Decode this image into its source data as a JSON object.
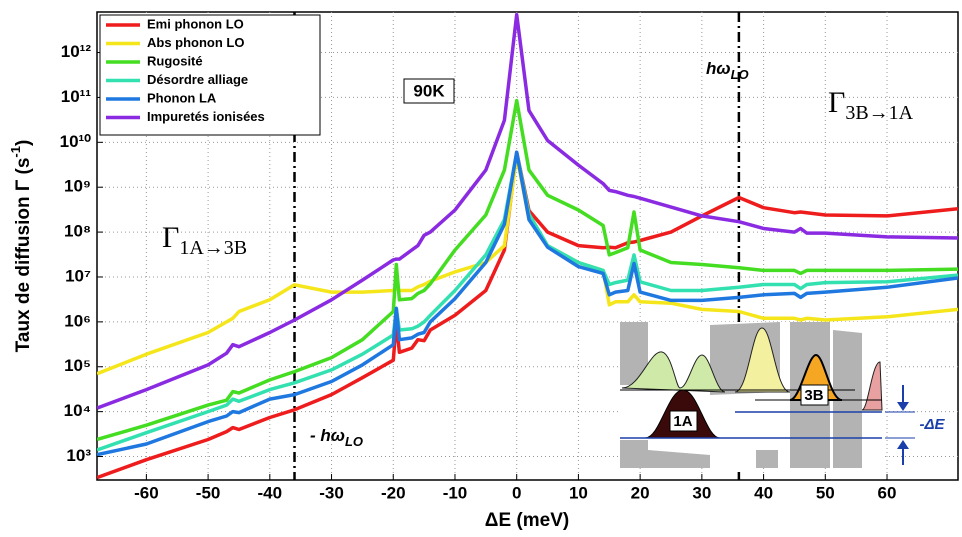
{
  "chart_data": {
    "type": "line",
    "x_label": "ΔE (meV)",
    "y_label": {
      "main": "Taux de diffusion  Γ (s",
      "sup": "-1",
      "end": ")"
    },
    "log_y": true,
    "grid": true,
    "legend": "upper left",
    "xlim": [
      -68,
      71.5
    ],
    "ylim": [
      300,
      8000000000000
    ],
    "xticks": [
      -60,
      -50,
      -40,
      -30,
      -20,
      -10,
      0,
      10,
      20,
      30,
      40,
      50,
      60
    ],
    "yticks": [
      {
        "value": 1000,
        "label": "10³"
      },
      {
        "value": 10000,
        "label": "10⁴"
      },
      {
        "value": 100000,
        "label": "10⁵"
      },
      {
        "value": 1000000,
        "label": "10⁶"
      },
      {
        "value": 10000000,
        "label": "10⁷"
      },
      {
        "value": 100000000,
        "label": "10⁸"
      },
      {
        "value": 1000000000,
        "label": "10⁹"
      },
      {
        "value": 10000000000,
        "label": "10¹⁰"
      },
      {
        "value": 100000000000,
        "label": "10¹¹"
      },
      {
        "value": 1000000000000,
        "label": "10¹²"
      }
    ],
    "x": [
      -68,
      -60,
      -50,
      -47,
      -46,
      -45,
      -40,
      -36,
      -30,
      -25,
      -20,
      -19.5,
      -19,
      -17,
      -16,
      -15,
      -14,
      -10,
      -5,
      -2,
      0,
      2,
      5,
      10,
      14,
      15,
      16,
      18,
      19,
      20,
      25,
      30,
      36,
      40,
      45,
      46,
      47,
      50,
      60,
      71.5
    ],
    "series": [
      {
        "name": "Emi phonon LO",
        "color": "#ee1c1c",
        "values": [
          340,
          850,
          2400,
          3600,
          4400,
          4000,
          7400,
          11000,
          24000,
          57000,
          140000,
          1000000,
          210000,
          260000,
          400000,
          380000,
          660000,
          1400000,
          5000000,
          40000000,
          6000000000,
          300000000,
          100000000,
          50000000,
          45000000,
          46000000,
          45000000,
          58000000,
          60000000,
          65000000,
          100000000,
          230000000,
          590000000,
          350000000,
          270000000,
          280000000,
          270000000,
          240000000,
          230000000,
          330000000
        ]
      },
      {
        "name": "Abs phonon LO",
        "color": "#f5e61c",
        "values": [
          70000,
          190000,
          580000,
          1000000,
          1200000,
          1700000,
          3100000,
          6700000,
          4600000,
          4600000,
          5000000,
          5500000,
          5000000,
          5000000,
          6000000,
          6800000,
          8000000,
          13000000,
          21000000,
          50000000,
          5000000000,
          190000000,
          50000000,
          21000000,
          14000000,
          2400000,
          2800000,
          2800000,
          4000000,
          2800000,
          2600000,
          1900000,
          1700000,
          1200000,
          1200000,
          1100000,
          1200000,
          1100000,
          1300000,
          1900000
        ]
      },
      {
        "name": "Rugosité",
        "color": "#44dd22",
        "values": [
          2400,
          5000,
          14000,
          18000,
          28000,
          26000,
          51000,
          78000,
          160000,
          400000,
          1700000,
          19000000,
          3100000,
          3300000,
          4300000,
          5000000,
          7000000,
          40000000,
          240000000,
          2400000000,
          85000000000,
          2400000000,
          660000000,
          310000000,
          140000000,
          31000000,
          35000000,
          45000000,
          280000000,
          40000000,
          21000000,
          19000000,
          16000000,
          14000000,
          14000000,
          12000000,
          14000000,
          14000000,
          14000000,
          15000000
        ]
      },
      {
        "name": "Désordre alliage",
        "color": "#33e0b0",
        "values": [
          1400,
          3400,
          10000,
          14000,
          19000,
          17000,
          31000,
          44000,
          85000,
          190000,
          510000,
          2000000,
          660000,
          700000,
          800000,
          1000000,
          1400000,
          5000000,
          31000000,
          190000000,
          6000000000,
          250000000,
          50000000,
          21000000,
          14000000,
          6800000,
          7500000,
          8500000,
          31000000,
          7800000,
          5000000,
          5000000,
          5900000,
          6800000,
          6800000,
          5500000,
          6800000,
          7500000,
          7800000,
          11000000
        ]
      },
      {
        "name": "Phonon LA",
        "color": "#1f78e0",
        "values": [
          1100,
          1900,
          6000,
          8000,
          10000,
          9500,
          19000,
          24000,
          47000,
          110000,
          310000,
          2000000,
          400000,
          440000,
          530000,
          580000,
          1000000,
          3300000,
          21000000,
          150000000,
          6000000000,
          190000000,
          46000000,
          17000000,
          12000000,
          4000000,
          4600000,
          5000000,
          20000000,
          4600000,
          3000000,
          3000000,
          3500000,
          4000000,
          4300000,
          3500000,
          4300000,
          4600000,
          5900000,
          9500000
        ]
      },
      {
        "name": "Impuretés ionisées",
        "color": "#8a2be2",
        "values": [
          12000,
          31000,
          110000,
          200000,
          310000,
          280000,
          580000,
          1100000,
          3100000,
          8500000,
          24000000,
          25000000,
          25000000,
          40000000,
          50000000,
          85000000,
          100000000,
          310000000,
          2400000000,
          31000000000,
          7000000000000,
          51000000000,
          11000000000,
          3100000000,
          1200000000,
          850000000,
          800000000,
          660000000,
          620000000,
          570000000,
          360000000,
          230000000,
          170000000,
          120000000,
          100000000,
          120000000,
          95000000,
          95000000,
          78000000,
          74000000
        ]
      }
    ],
    "reference_lines": [
      -36,
      36
    ],
    "annotations": {
      "temperature": "90K",
      "hw_right": {
        "main": "hω",
        "sub": "LO"
      },
      "hw_left": {
        "main": "- hω",
        "sub": "LO"
      },
      "gamma_right": {
        "main": "Γ",
        "sub": "3B→1A"
      },
      "gamma_left": {
        "main": "Γ",
        "sub": "1A→3B"
      },
      "inset_1A": "1A",
      "inset_3B": "3B",
      "inset_dE": "-ΔE"
    }
  }
}
